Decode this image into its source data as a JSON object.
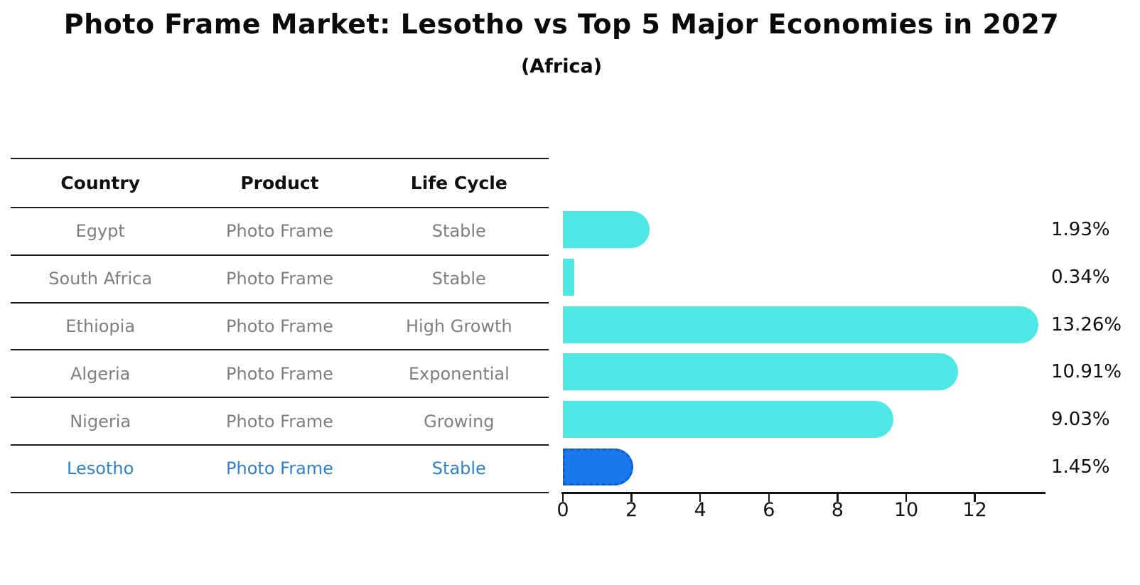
{
  "title": "Photo Frame Market: Lesotho vs Top 5 Major Economies in 2027",
  "subtitle": "(Africa)",
  "table": {
    "headers": [
      "Country",
      "Product",
      "Life Cycle"
    ],
    "rows": [
      {
        "country": "Egypt",
        "product": "Photo Frame",
        "life_cycle": "Stable",
        "highlighted": false
      },
      {
        "country": "South Africa",
        "product": "Photo Frame",
        "life_cycle": "Stable",
        "highlighted": false
      },
      {
        "country": "Ethiopia",
        "product": "Photo Frame",
        "life_cycle": "High Growth",
        "highlighted": false
      },
      {
        "country": "Algeria",
        "product": "Photo Frame",
        "life_cycle": "Exponential",
        "highlighted": false
      },
      {
        "country": "Nigeria",
        "product": "Photo Frame",
        "life_cycle": "Growing",
        "highlighted": false
      },
      {
        "country": "Lesotho",
        "product": "Photo Frame",
        "life_cycle": "Stable",
        "highlighted": true
      }
    ]
  },
  "chart_data": {
    "type": "bar",
    "orientation": "horizontal",
    "title": "Photo Frame Market: Lesotho vs Top 5 Major Economies in 2027",
    "subtitle": "(Africa)",
    "categories": [
      "Egypt",
      "South Africa",
      "Ethiopia",
      "Algeria",
      "Nigeria",
      "Lesotho"
    ],
    "values": [
      1.93,
      0.34,
      13.26,
      10.91,
      9.03,
      1.45
    ],
    "value_labels": [
      "1.93%",
      "0.34%",
      "13.26%",
      "10.91%",
      "9.03%",
      "1.45%"
    ],
    "unit": "percent",
    "xticks": [
      0,
      2,
      4,
      6,
      8,
      10,
      12
    ],
    "xlim": [
      0,
      14.1
    ],
    "grid": false,
    "legend": false,
    "highlight_index": 5,
    "colors": {
      "bar": "#4de8e3",
      "highlight_bar": "#1878ec",
      "highlight_text": "#2e81c9",
      "table_text": "#7f7f7f",
      "header_text": "#0f0f0f",
      "axis": "#141414"
    }
  }
}
